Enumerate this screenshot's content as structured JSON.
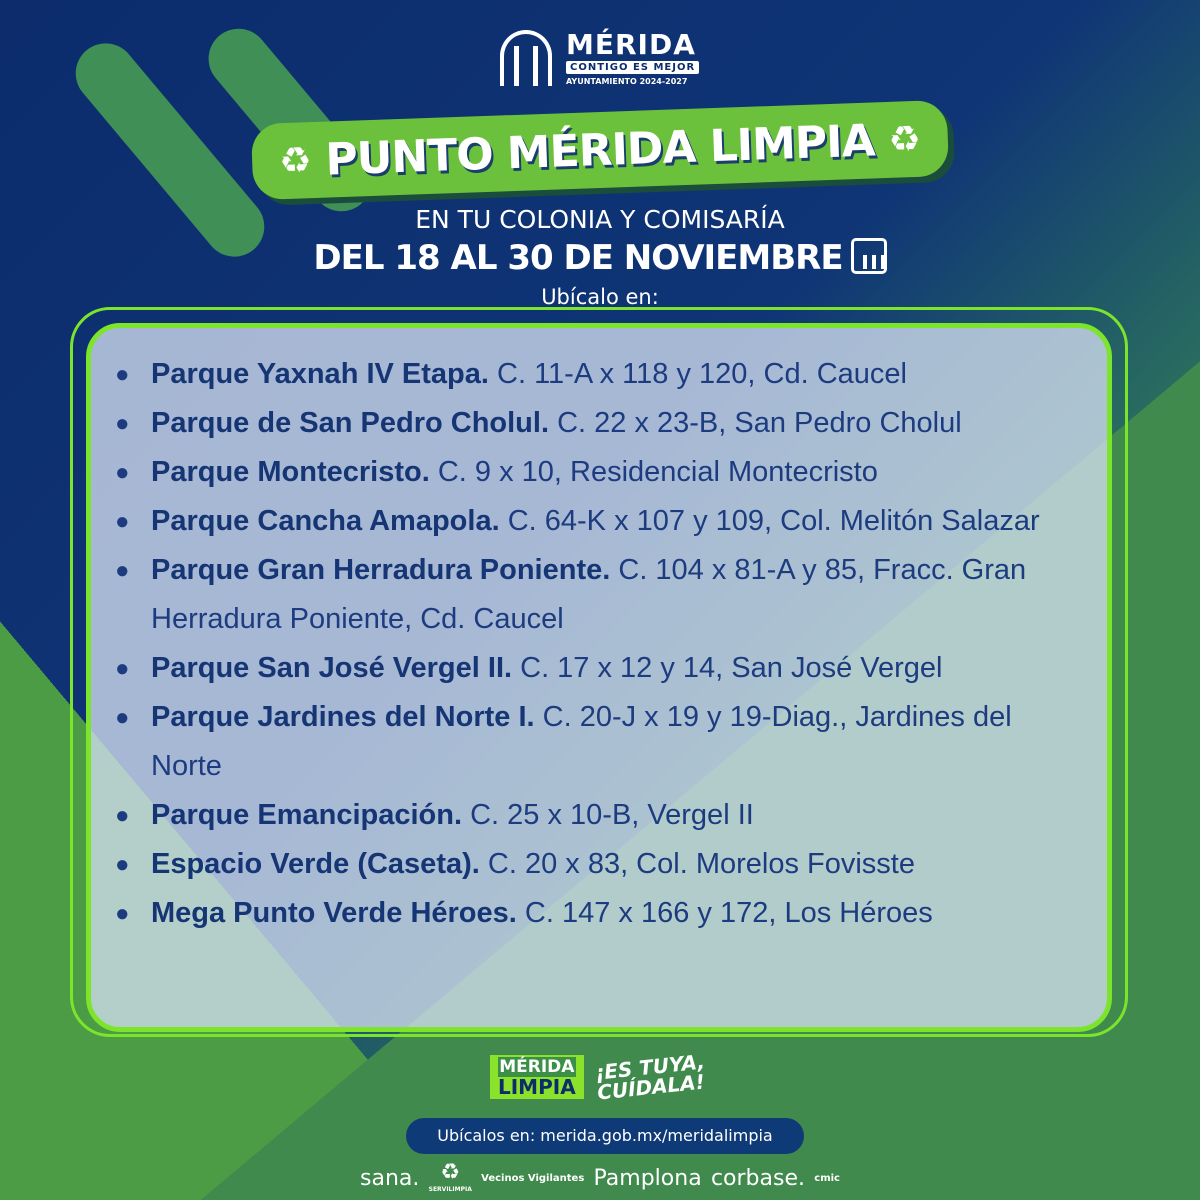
{
  "logo": {
    "name": "MÉRIDA",
    "slogan": "CONTIGO ES MEJOR",
    "ayuntamiento": "AYUNTAMIENTO 2024-2027"
  },
  "title": "PUNTO MÉRIDA LIMPIA",
  "title_icon": "recycle-icon",
  "subtitle": "EN TU COLONIA Y COMISARÍA",
  "dates": "DEL 18 AL 30 DE NOVIEMBRE",
  "dates_icon": "calendar-icon",
  "locate": "Ubícalo en:",
  "locations": [
    {
      "name": "Parque Yaxnah IV Etapa.",
      "address": " C. 11-A x 118 y 120, Cd. Caucel"
    },
    {
      "name": "Parque de San Pedro Cholul.",
      "address": " C. 22 x 23-B, San Pedro Cholul"
    },
    {
      "name": "Parque Montecristo.",
      "address": " C. 9 x 10, Residencial Montecristo"
    },
    {
      "name": "Parque Cancha Amapola.",
      "address": " C. 64-K x 107 y 109, Col. Melitón Salazar"
    },
    {
      "name": "Parque Gran Herradura Poniente.",
      "address": " C. 104 x 81-A y 85, Fracc. Gran Herradura Poniente, Cd. Caucel"
    },
    {
      "name": "Parque San José Vergel II.",
      "address": " C. 17 x 12 y 14, San José Vergel"
    },
    {
      "name": "Parque Jardines del Norte I.",
      "address": " C. 20-J x 19 y 19-Diag., Jardines del Norte"
    },
    {
      "name": "Parque Emancipación.",
      "address": " C. 25 x 10-B, Vergel II"
    },
    {
      "name": "Espacio Verde (Caseta).",
      "address": " C. 20 x 83, Col. Morelos Fovisste"
    },
    {
      "name": "Mega Punto Verde Héroes.",
      "address": " C. 147 x 166 y 172, Los Héroes"
    }
  ],
  "footer": {
    "merida_limpia_top": "MÉRIDA",
    "merida_limpia_bottom": "LIMPIA",
    "es_tuya_1": "¡ES TUYA,",
    "es_tuya_2": "CUÍDALA!",
    "url": "Ubícalos en: merida.gob.mx/meridalimpia",
    "sponsors": [
      "sana.",
      "SERVILIMPIA",
      "Vecinos Vigilantes",
      "Pamplona",
      "corbase.",
      "cmic"
    ]
  },
  "colors": {
    "navy": "#0c2c6c",
    "green": "#6cc13c",
    "lime": "#7de42c"
  }
}
